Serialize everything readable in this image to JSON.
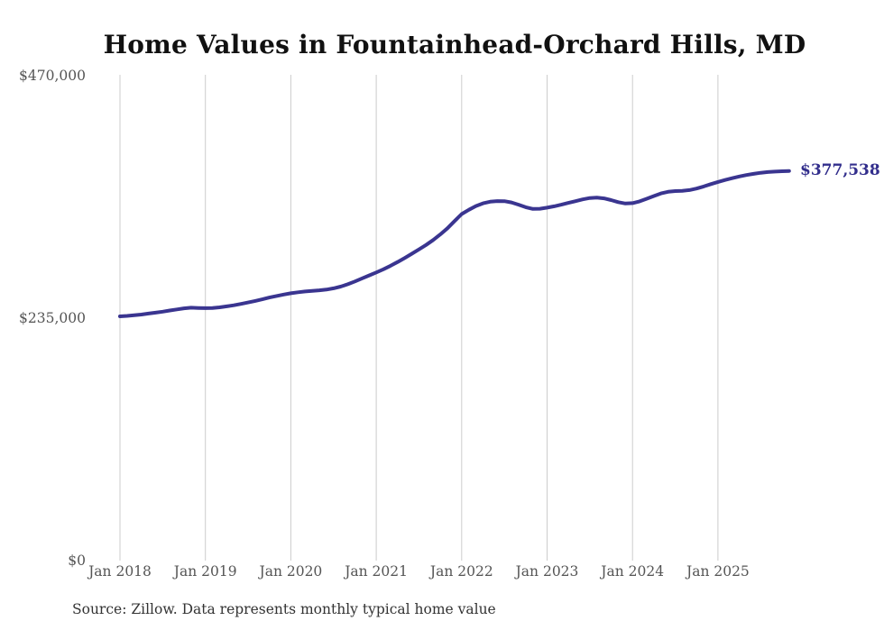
{
  "title": "Home Values in Fountainhead-Orchard Hills, MD",
  "end_label": "$377,538",
  "source_note": "Source: Zillow. Data represents monthly typical home value",
  "colors": {
    "line": "#3a3590",
    "end_label": "#322e8c",
    "grid": "#cccccc",
    "axis_text": "#555555",
    "title_text": "#111111",
    "source_text": "#333333"
  },
  "chart_data": {
    "type": "line",
    "title": "Home Values in Fountainhead-Orchard Hills, MD",
    "xlabel": "",
    "ylabel": "",
    "ylim": [
      0,
      470000
    ],
    "grid": "vertical-only",
    "legend_position": "none",
    "start_month": "2018-01",
    "end_month": "2025-11",
    "frequency": "monthly",
    "x_tick_labels": [
      "Jan 2018",
      "Jan 2019",
      "Jan 2020",
      "Jan 2021",
      "Jan 2022",
      "Jan 2023",
      "Jan 2024",
      "Jan 2025"
    ],
    "x_tick_month_indices": [
      0,
      12,
      24,
      36,
      48,
      60,
      72,
      84
    ],
    "y_ticks": [
      {
        "value": 470000,
        "label": "$470,000"
      },
      {
        "value": 235000,
        "label": "$235,000"
      },
      {
        "value": 0,
        "label": "$0"
      }
    ],
    "last_value": 377538,
    "last_value_label": "$377,538",
    "series": [
      {
        "name": "Monthly typical home value",
        "monthly_values": [
          236500,
          237000,
          237600,
          238300,
          239200,
          240100,
          241100,
          242200,
          243300,
          244300,
          244900,
          244700,
          244500,
          244700,
          245300,
          246200,
          247300,
          248600,
          250000,
          251500,
          253100,
          254800,
          256300,
          257700,
          258900,
          259900,
          260700,
          261300,
          261800,
          262500,
          263700,
          265400,
          267700,
          270400,
          273300,
          276200,
          279100,
          282200,
          285600,
          289300,
          293200,
          297300,
          301500,
          305800,
          310600,
          316000,
          322000,
          329000,
          335800,
          339900,
          343600,
          346200,
          347800,
          348400,
          348300,
          347100,
          344900,
          342400,
          340800,
          340900,
          342000,
          343300,
          344900,
          346600,
          348300,
          350000,
          351300,
          351700,
          351000,
          349300,
          347300,
          346000,
          346400,
          348100,
          350600,
          353300,
          355800,
          357400,
          358100,
          358300,
          359000,
          360500,
          362500,
          364800,
          366900,
          368800,
          370600,
          372200,
          373600,
          374800,
          375800,
          376500,
          377000,
          377350,
          377538
        ]
      }
    ]
  }
}
